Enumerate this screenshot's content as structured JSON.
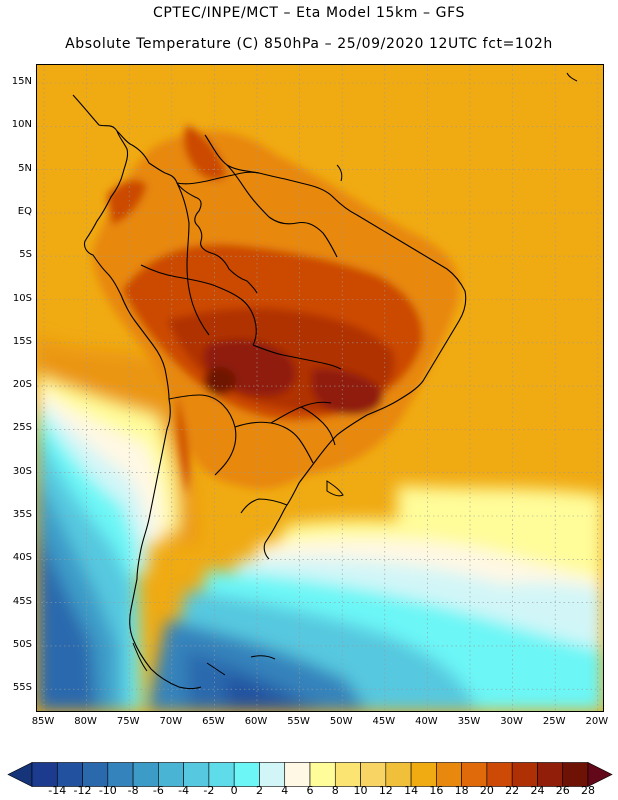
{
  "header": {
    "line1": "CPTEC/INPE/MCT –  Eta Model 15km – GFS",
    "line2": "Absolute Temperature (C) 850hPa – 25/09/2020 12UTC fct=102h"
  },
  "map": {
    "lat_labels": [
      "15N",
      "10N",
      "5N",
      "EQ",
      "5S",
      "10S",
      "15S",
      "20S",
      "25S",
      "30S",
      "35S",
      "40S",
      "45S",
      "50S",
      "55S"
    ],
    "lon_labels": [
      "85W",
      "80W",
      "75W",
      "70W",
      "65W",
      "60W",
      "55W",
      "50W",
      "45W",
      "40W",
      "35W",
      "30W",
      "25W",
      "20W"
    ],
    "grid": "dotted"
  },
  "colorbar": {
    "labels": [
      "-14",
      "-12",
      "-10",
      "-8",
      "-6",
      "-4",
      "-2",
      "0",
      "2",
      "4",
      "6",
      "8",
      "10",
      "12",
      "14",
      "16",
      "18",
      "20",
      "22",
      "24",
      "26",
      "28"
    ],
    "colors": [
      "#1c3b8f",
      "#22519f",
      "#2b69ad",
      "#3483bc",
      "#3d9bc8",
      "#4ab4d4",
      "#56c8df",
      "#5fdcea",
      "#6cf6f6",
      "#d2f6f8",
      "#fff8e4",
      "#fffc9a",
      "#fbe472",
      "#f8d464",
      "#f0c03a",
      "#f0aa12",
      "#e8880c",
      "#e06a0a",
      "#cc4a06",
      "#b03006",
      "#901e08",
      "#6e1206"
    ],
    "min_arrow_color": "#16347a",
    "max_arrow_color": "#620818"
  }
}
